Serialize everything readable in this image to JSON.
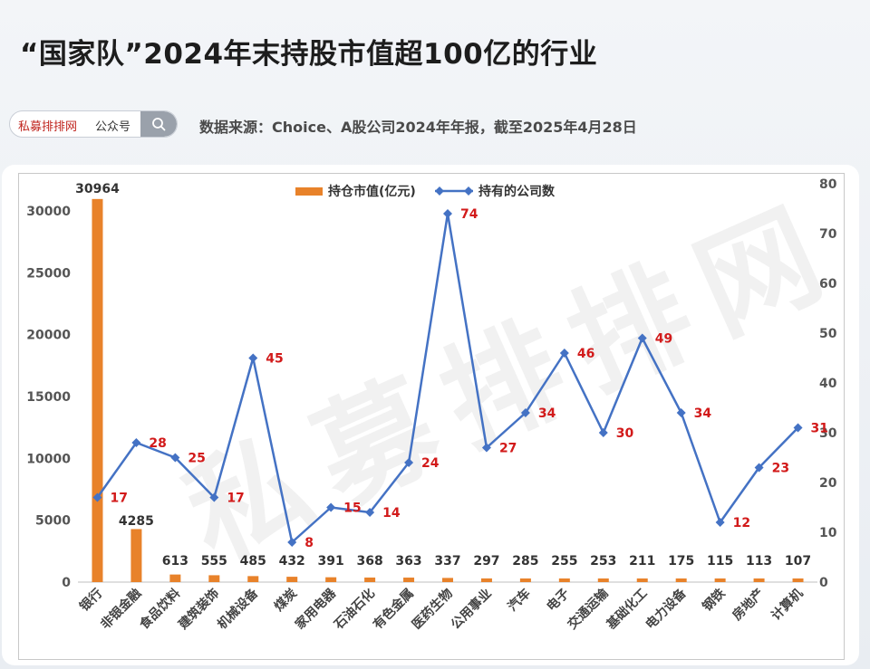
{
  "header": {
    "title": "“国家队”2024年末持股市值超100亿的行业",
    "source_note": "数据来源：Choice、A股公司2024年年报，截至2025年4月28日"
  },
  "search": {
    "brand": "私募排排网",
    "suffix": "公众号",
    "icon": "search-icon"
  },
  "watermark": "私募排排网",
  "colors": {
    "bar": "#e8822a",
    "line": "#4472c4",
    "line_label": "#d21a1a"
  },
  "chart_data": {
    "type": "bar",
    "categories": [
      "银行",
      "非银金融",
      "食品饮料",
      "建筑装饰",
      "机械设备",
      "煤炭",
      "家用电器",
      "石油石化",
      "有色金属",
      "医药生物",
      "公用事业",
      "汽车",
      "电子",
      "交通运输",
      "基础化工",
      "电力设备",
      "钢铁",
      "房地产",
      "计算机"
    ],
    "series": [
      {
        "name": "持仓市值(亿元)",
        "type": "bar",
        "axis": "left",
        "values": [
          30964,
          4285,
          613,
          555,
          485,
          432,
          391,
          368,
          363,
          337,
          297,
          285,
          255,
          253,
          211,
          175,
          115,
          113,
          107
        ],
        "labels": [
          "30964",
          "4285",
          "613",
          "555",
          "485",
          "432",
          "391",
          "368",
          "363",
          "337",
          "297",
          "285",
          "255",
          "253",
          "211",
          "175",
          "115",
          "113",
          "107"
        ]
      },
      {
        "name": "持有的公司数",
        "type": "line",
        "axis": "right",
        "values": [
          17,
          28,
          25,
          17,
          45,
          8,
          15,
          14,
          24,
          74,
          27,
          34,
          46,
          30,
          49,
          34,
          12,
          23,
          31
        ],
        "labels": [
          "17",
          "28",
          "25",
          "17",
          "45",
          "8",
          "15",
          "14",
          "24",
          "74",
          "27",
          "34",
          "46",
          "30",
          "49",
          "34",
          "12",
          "23",
          "31"
        ]
      }
    ],
    "y_left": {
      "ylim": [
        0,
        32000
      ],
      "ticks": [
        "0",
        "5000",
        "10000",
        "15000",
        "20000",
        "25000",
        "30000"
      ]
    },
    "y_right": {
      "ylim": [
        0,
        80
      ],
      "ticks": [
        "0",
        "10",
        "20",
        "30",
        "40",
        "50",
        "60",
        "70",
        "80"
      ]
    },
    "legend": "top-center",
    "grid": false
  }
}
